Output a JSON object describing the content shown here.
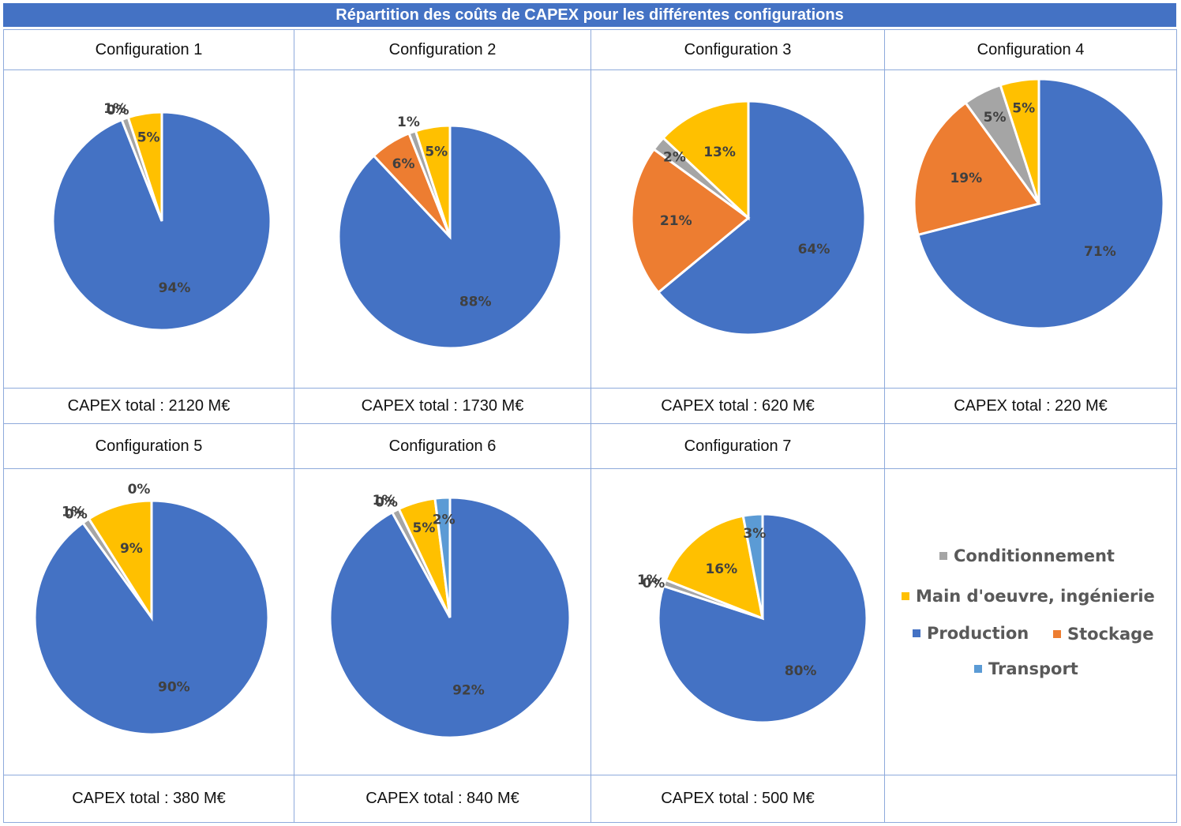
{
  "title": "Répartition des coûts de CAPEX pour les différentes configurations",
  "colors": {
    "Production": "#4472c4",
    "Stockage": "#ed7d31",
    "Conditionnement": "#a5a5a5",
    "Main d'oeuvre, ingénierie": "#ffc000",
    "Transport": "#5b9bd5"
  },
  "legend": [
    "Conditionnement",
    "Main d'oeuvre, ingénierie",
    "Production",
    "Stockage",
    "Transport"
  ],
  "chart_data": [
    {
      "type": "pie",
      "title": "Configuration 1",
      "footer": "CAPEX total : 2120 M€",
      "slices": [
        {
          "category": "Production",
          "value": 94,
          "label": "94%"
        },
        {
          "category": "Stockage",
          "value": 0,
          "label": "0%"
        },
        {
          "category": "Conditionnement",
          "value": 1,
          "label": "1%"
        },
        {
          "category": "Main d'oeuvre, ingénierie",
          "value": 5,
          "label": "5%"
        }
      ]
    },
    {
      "type": "pie",
      "title": "Configuration 2",
      "footer": "CAPEX total : 1730 M€",
      "slices": [
        {
          "category": "Production",
          "value": 88,
          "label": "88%"
        },
        {
          "category": "Stockage",
          "value": 6,
          "label": "6%"
        },
        {
          "category": "Conditionnement",
          "value": 1,
          "label": "1%"
        },
        {
          "category": "Main d'oeuvre, ingénierie",
          "value": 5,
          "label": "5%"
        }
      ]
    },
    {
      "type": "pie",
      "title": "Configuration 3",
      "footer": "CAPEX total : 620 M€",
      "slices": [
        {
          "category": "Production",
          "value": 64,
          "label": "64%"
        },
        {
          "category": "Stockage",
          "value": 21,
          "label": "21%"
        },
        {
          "category": "Conditionnement",
          "value": 2,
          "label": "2%"
        },
        {
          "category": "Main d'oeuvre, ingénierie",
          "value": 13,
          "label": "13%"
        }
      ]
    },
    {
      "type": "pie",
      "title": "Configuration 4",
      "footer": "CAPEX total : 220 M€",
      "slices": [
        {
          "category": "Production",
          "value": 71,
          "label": "71%"
        },
        {
          "category": "Stockage",
          "value": 19,
          "label": "19%"
        },
        {
          "category": "Conditionnement",
          "value": 5,
          "label": "5%"
        },
        {
          "category": "Main d'oeuvre, ingénierie",
          "value": 5,
          "label": "5%"
        }
      ]
    },
    {
      "type": "pie",
      "title": "Configuration 5",
      "footer": "CAPEX total : 380 M€",
      "slices": [
        {
          "category": "Production",
          "value": 90,
          "label": "90%"
        },
        {
          "category": "Stockage",
          "value": 0,
          "label": "0%"
        },
        {
          "category": "Conditionnement",
          "value": 1,
          "label": "1%"
        },
        {
          "category": "Main d'oeuvre, ingénierie",
          "value": 9,
          "label": "9%"
        },
        {
          "category": "Transport",
          "value": 0,
          "label": "0%"
        }
      ]
    },
    {
      "type": "pie",
      "title": "Configuration 6",
      "footer": "CAPEX total : 840 M€",
      "slices": [
        {
          "category": "Production",
          "value": 92,
          "label": "92%"
        },
        {
          "category": "Stockage",
          "value": 0,
          "label": "0%"
        },
        {
          "category": "Conditionnement",
          "value": 1,
          "label": "1%"
        },
        {
          "category": "Main d'oeuvre, ingénierie",
          "value": 5,
          "label": "5%"
        },
        {
          "category": "Transport",
          "value": 2,
          "label": "2%"
        }
      ]
    },
    {
      "type": "pie",
      "title": "Configuration 7",
      "footer": "CAPEX total : 500 M€",
      "slices": [
        {
          "category": "Production",
          "value": 80,
          "label": "80%"
        },
        {
          "category": "Stockage",
          "value": 0,
          "label": "0%"
        },
        {
          "category": "Conditionnement",
          "value": 1,
          "label": "1%"
        },
        {
          "category": "Main d'oeuvre, ingénierie",
          "value": 16,
          "label": "16%"
        },
        {
          "category": "Transport",
          "value": 3,
          "label": "3%"
        }
      ]
    }
  ]
}
